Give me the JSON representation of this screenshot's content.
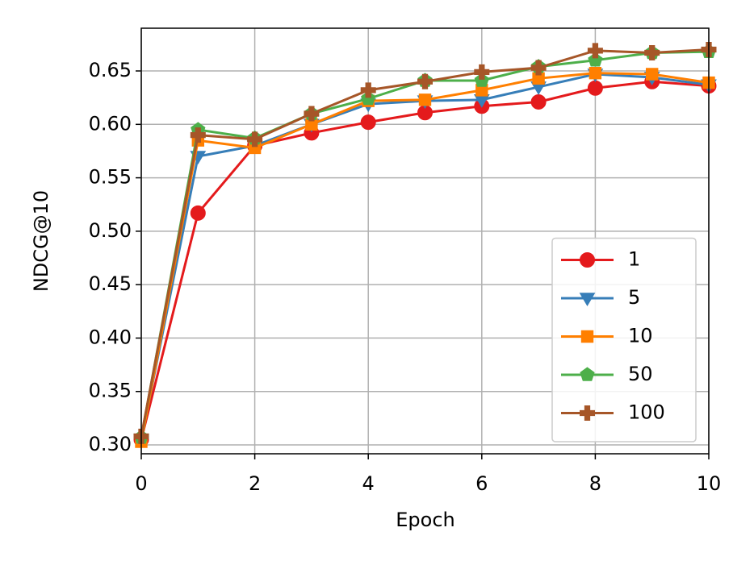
{
  "chart_data": {
    "type": "line",
    "xlabel": "Epoch",
    "ylabel": "NDCG@10",
    "x": [
      0,
      1,
      2,
      3,
      4,
      5,
      6,
      7,
      8,
      9,
      10
    ],
    "series": [
      {
        "name": "1",
        "color": "#e41a1c",
        "marker": "circle",
        "values": [
          0.305,
          0.517,
          0.58,
          0.592,
          0.602,
          0.611,
          0.617,
          0.621,
          0.634,
          0.64,
          0.636
        ]
      },
      {
        "name": "5",
        "color": "#377eb8",
        "marker": "triangle-down",
        "values": [
          0.305,
          0.57,
          0.58,
          0.6,
          0.619,
          0.622,
          0.623,
          0.635,
          0.647,
          0.644,
          0.637
        ]
      },
      {
        "name": "10",
        "color": "#ff7f00",
        "marker": "square",
        "values": [
          0.303,
          0.585,
          0.578,
          0.6,
          0.622,
          0.623,
          0.632,
          0.643,
          0.648,
          0.647,
          0.639
        ]
      },
      {
        "name": "50",
        "color": "#4daf4a",
        "marker": "pentagon",
        "values": [
          0.307,
          0.595,
          0.587,
          0.61,
          0.624,
          0.641,
          0.641,
          0.654,
          0.66,
          0.667,
          0.668
        ]
      },
      {
        "name": "100",
        "color": "#a65628",
        "marker": "plus",
        "values": [
          0.308,
          0.59,
          0.586,
          0.61,
          0.632,
          0.64,
          0.649,
          0.653,
          0.669,
          0.667,
          0.67
        ]
      }
    ],
    "xlim": [
      0,
      10
    ],
    "xticks": [
      0,
      2,
      4,
      6,
      8,
      10
    ],
    "ylim": [
      0.2917,
      0.69
    ],
    "yticks": [
      {
        "value": 0.3,
        "label": "0.30"
      },
      0.35,
      {
        "value": 0.4,
        "label": "0.40"
      },
      0.45,
      {
        "value": 0.5,
        "label": "0.50"
      },
      0.55,
      {
        "value": 0.6,
        "label": "0.60"
      },
      0.65
    ],
    "grid": true,
    "legend": "lower right"
  }
}
